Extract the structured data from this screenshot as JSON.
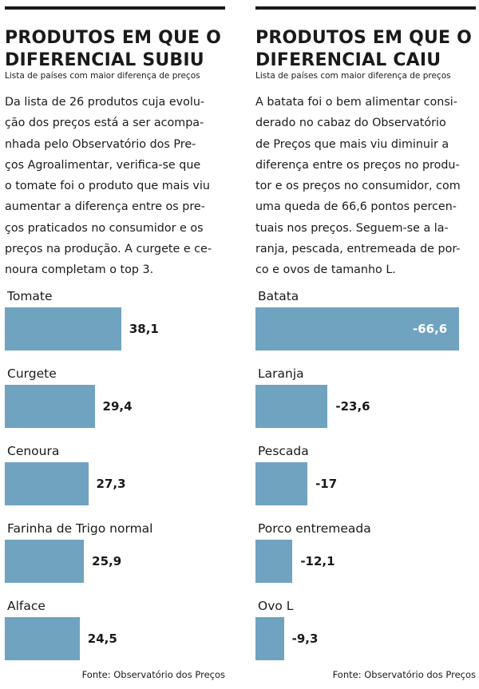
{
  "left": {
    "title_line1": "PRODUTOS EM QUE O",
    "title_line2": "DIFERENCIAL SUBIU",
    "subtitle": "Lista de países com maior diferença de preços",
    "intro": "Da lista de 26 produtos cuja evolu-\nção dos preços está a ser acompa-\nnhada pelo Observatório dos Pre-\nços Agroalimentar, verifica-se que\no tomate foi o produto que mais viu\naumentar a diferença entre os pre-\nços praticados no consumidor e os\npreços na produção. A curgete e ce-\nnoura completam o top 3.",
    "source": "Fonte: Observatório dos Preços"
  },
  "right": {
    "title_line1": "PRODUTOS EM QUE O",
    "title_line2": "DIFERENCIAL CAIU",
    "subtitle": "Lista de países com maior diferença de preços",
    "intro": "A batata foi o bem alimentar consi-\nderado no cabaz do Observatório\nde Preços que mais viu diminuir a\ndiferença entre os preços no produ-\ntor e os preços no consumidor, com\numa queda de 66,6 pontos percen-\ntuais nos preços. Seguem-se a la-\nranja, pescada, entremeada de por-\nco e ovos de tamanho L.",
    "source": "Fonte: Observatório dos Preços"
  },
  "chart_data": [
    {
      "type": "bar",
      "orientation": "horizontal",
      "title": "PRODUTOS EM QUE O DIFERENCIAL SUBIU",
      "categories": [
        "Tomate",
        "Curgete",
        "Cenoura",
        "Farinha de Trigo normal",
        "Alface"
      ],
      "values": [
        38.1,
        29.4,
        27.3,
        25.9,
        24.5
      ],
      "value_labels": [
        "38,1",
        "29,4",
        "27,3",
        "25,9",
        "24,5"
      ],
      "bar_color": "#6fa3bf",
      "xlim": [
        0,
        70
      ]
    },
    {
      "type": "bar",
      "orientation": "horizontal",
      "title": "PRODUTOS EM QUE O DIFERENCIAL CAIU",
      "categories": [
        "Batata",
        "Laranja",
        "Pescada",
        "Porco entremeada",
        "Ovo L"
      ],
      "values": [
        -66.6,
        -23.6,
        -17,
        -12.1,
        -9.3
      ],
      "value_labels": [
        "-66,6",
        "-23,6",
        "-17",
        "-12,1",
        "-9,3"
      ],
      "bar_color": "#6fa3bf",
      "xlim": [
        0,
        70
      ]
    }
  ]
}
